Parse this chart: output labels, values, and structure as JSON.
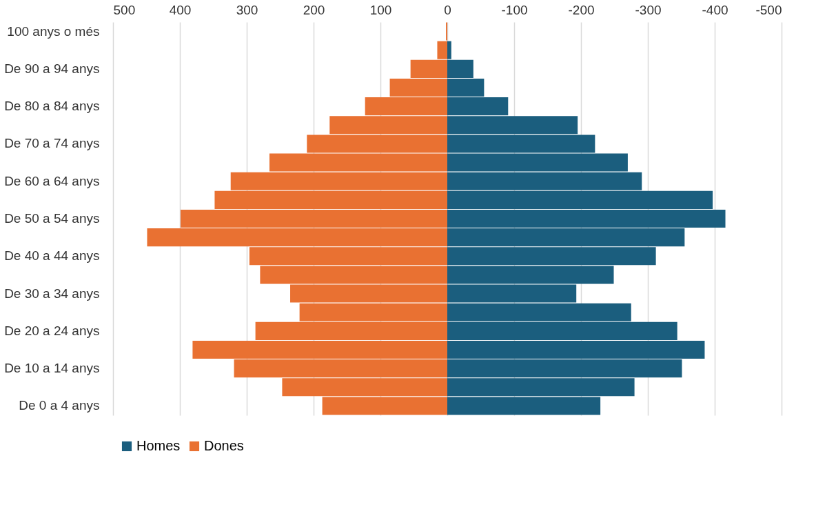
{
  "chart_data": {
    "type": "bar",
    "orientation": "horizontal",
    "categories": [
      "100 anys o més",
      null,
      "De 90 a 94 anys",
      null,
      "De 80 a 84 anys",
      null,
      "De 70 a 74 anys",
      null,
      "De 60 a 64 anys",
      null,
      "De 50 a 54 anys",
      null,
      "De 40 a 44 anys",
      null,
      "De 30 a 34 anys",
      null,
      "De 20 a 24 anys",
      null,
      "De 10 a 14 anys",
      null,
      "De 0 a 4 anys"
    ],
    "series": [
      {
        "name": "Homes",
        "color": "#1b5e7e",
        "values": [
          0,
          -6,
          -39,
          -55,
          -91,
          -195,
          -221,
          -270,
          -291,
          -397,
          -416,
          -355,
          -312,
          -249,
          -193,
          -275,
          -344,
          -385,
          -351,
          -280,
          -229
        ]
      },
      {
        "name": "Dones",
        "color": "#e97132",
        "values": [
          2,
          15,
          55,
          86,
          123,
          176,
          210,
          266,
          324,
          348,
          399,
          449,
          296,
          280,
          235,
          221,
          287,
          381,
          319,
          247,
          187
        ]
      }
    ],
    "xlim": [
      500,
      -500
    ],
    "xticks": [
      500,
      400,
      300,
      200,
      100,
      0,
      -100,
      -200,
      -300,
      -400,
      -500
    ],
    "grid": "x",
    "legend": "bottom",
    "stacked": true
  }
}
